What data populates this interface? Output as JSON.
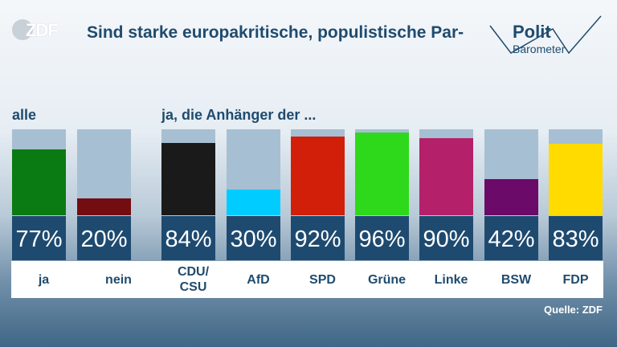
{
  "header": {
    "logo_text": "ZDF",
    "title": "Sind starke europakritische, populistische Par-",
    "brand_line1": "Polit",
    "brand_line2": "Barometer"
  },
  "labels": {
    "all": "alle",
    "supporters": "ja, die Anhänger der ..."
  },
  "source": "Quelle: ZDF",
  "colors": {
    "track": "#a7bfd2",
    "value_box": "#1e4a70",
    "text": "#1f4b6e"
  },
  "chart_data": {
    "type": "bar",
    "title": "Sind starke europakritische, populistische Par-",
    "ylim": [
      0,
      100
    ],
    "categories": [
      "ja",
      "nein",
      "CDU/\nCSU",
      "AfD",
      "SPD",
      "Grüne",
      "Linke",
      "BSW",
      "FDP"
    ],
    "values": [
      77,
      20,
      84,
      30,
      92,
      96,
      90,
      42,
      83
    ],
    "value_labels": [
      "77%",
      "20%",
      "84%",
      "30%",
      "92%",
      "96%",
      "90%",
      "42%",
      "83%"
    ],
    "bar_colors": [
      "#0a7a12",
      "#730d12",
      "#1a1a1a",
      "#00ccff",
      "#d11f0a",
      "#2ed81a",
      "#b5206a",
      "#6b0a68",
      "#ffdb00"
    ]
  }
}
